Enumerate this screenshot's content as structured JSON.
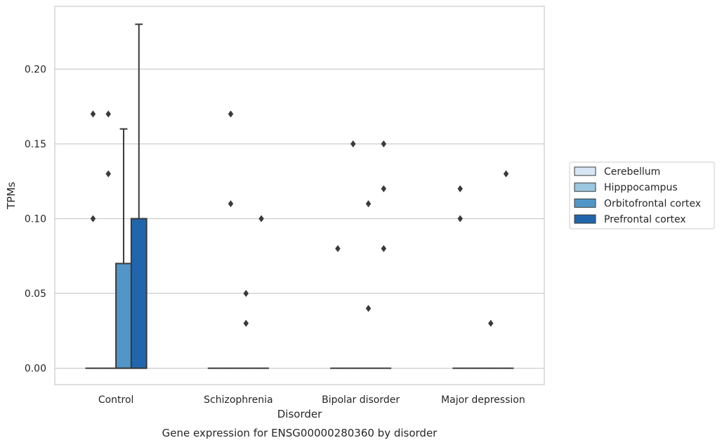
{
  "chart_data": {
    "type": "box",
    "caption": "Gene expression for ENSG00000280360 by disorder",
    "xlabel": "Disorder",
    "ylabel": "TPMs",
    "ylim": [
      -0.011,
      0.242
    ],
    "yticks": [
      0.0,
      0.05,
      0.1,
      0.15,
      0.2
    ],
    "ytick_labels": [
      "0.00",
      "0.05",
      "0.10",
      "0.15",
      "0.20"
    ],
    "grid": "horizontal",
    "legend_position": "right",
    "categories": [
      "Control",
      "Schizophrenia",
      "Bipolar disorder",
      "Major depression"
    ],
    "series": [
      {
        "name": "Cerebellum",
        "color": "#d6e6f4",
        "boxes": [
          {
            "q1": 0,
            "median": 0,
            "q3": 0,
            "whisker_low": 0,
            "whisker_high": 0,
            "outliers": [
              0.1,
              0.17
            ]
          },
          {
            "q1": 0,
            "median": 0,
            "q3": 0,
            "whisker_low": 0,
            "whisker_high": 0,
            "outliers": []
          },
          {
            "q1": 0,
            "median": 0,
            "q3": 0,
            "whisker_low": 0,
            "whisker_high": 0,
            "outliers": [
              0.08
            ]
          },
          {
            "q1": 0,
            "median": 0,
            "q3": 0,
            "whisker_low": 0,
            "whisker_high": 0,
            "outliers": [
              0.1,
              0.12
            ]
          }
        ]
      },
      {
        "name": "Hipppocampus",
        "color": "#9ac8e0",
        "boxes": [
          {
            "q1": 0,
            "median": 0,
            "q3": 0,
            "whisker_low": 0,
            "whisker_high": 0,
            "outliers": [
              0.13,
              0.17
            ]
          },
          {
            "q1": 0,
            "median": 0,
            "q3": 0,
            "whisker_low": 0,
            "whisker_high": 0,
            "outliers": [
              0.11,
              0.17
            ]
          },
          {
            "q1": 0,
            "median": 0,
            "q3": 0,
            "whisker_low": 0,
            "whisker_high": 0,
            "outliers": [
              0.15
            ]
          },
          {
            "q1": 0,
            "median": 0,
            "q3": 0,
            "whisker_low": 0,
            "whisker_high": 0,
            "outliers": []
          }
        ]
      },
      {
        "name": "Orbitofrontal cortex",
        "color": "#5296c9",
        "boxes": [
          {
            "q1": 0,
            "median": 0,
            "q3": 0.07,
            "whisker_low": 0,
            "whisker_high": 0.16,
            "outliers": []
          },
          {
            "q1": 0,
            "median": 0,
            "q3": 0,
            "whisker_low": 0,
            "whisker_high": 0,
            "outliers": [
              0.03,
              0.05
            ]
          },
          {
            "q1": 0,
            "median": 0,
            "q3": 0,
            "whisker_low": 0,
            "whisker_high": 0,
            "outliers": [
              0.04,
              0.11
            ]
          },
          {
            "q1": 0,
            "median": 0,
            "q3": 0,
            "whisker_low": 0,
            "whisker_high": 0,
            "outliers": [
              0.03
            ]
          }
        ]
      },
      {
        "name": "Prefrontal cortex",
        "color": "#2166ac",
        "boxes": [
          {
            "q1": 0,
            "median": 0,
            "q3": 0.1,
            "whisker_low": 0,
            "whisker_high": 0.23,
            "outliers": []
          },
          {
            "q1": 0,
            "median": 0,
            "q3": 0,
            "whisker_low": 0,
            "whisker_high": 0,
            "outliers": [
              0.1
            ]
          },
          {
            "q1": 0,
            "median": 0,
            "q3": 0,
            "whisker_low": 0,
            "whisker_high": 0,
            "outliers": [
              0.08,
              0.12,
              0.15
            ]
          },
          {
            "q1": 0,
            "median": 0,
            "q3": 0,
            "whisker_low": 0,
            "whisker_high": 0,
            "outliers": [
              0.13
            ]
          }
        ]
      }
    ]
  }
}
